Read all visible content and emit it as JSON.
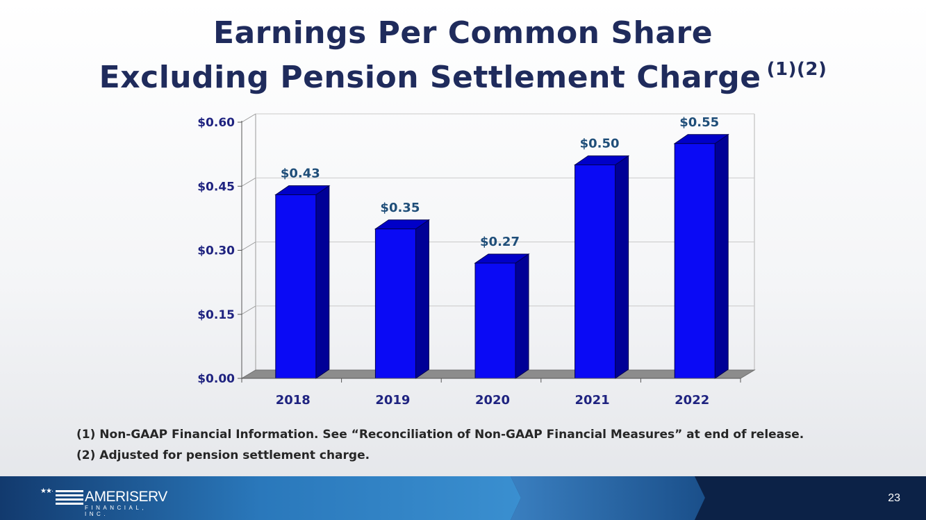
{
  "slide": {
    "title_line1": "Earnings Per Common Share",
    "title_line2": "Excluding Pension Settlement Charge",
    "title_superscript": "(1)(2)",
    "notes": [
      "(1) Non-GAAP Financial Information. See “Reconciliation of Non-GAAP Financial Measures” at end of release.",
      "(2) Adjusted for pension settlement charge."
    ],
    "page_number": "23"
  },
  "logo": {
    "name": "AMERISERV",
    "subtitle": "FINANCIAL, INC."
  },
  "colors": {
    "title": "#1f2b5c",
    "bar_front": "#0a0af5",
    "bar_side": "#000096",
    "bar_top": "#0000c8",
    "axis_label": "#1f2380",
    "data_label": "#1f4e79",
    "footer_dark": "#0f2a55",
    "footer_light": "#2e86c9"
  },
  "chart_data": {
    "type": "bar",
    "title": "Earnings Per Common Share Excluding Pension Settlement Charge",
    "categories": [
      "2018",
      "2019",
      "2020",
      "2021",
      "2022"
    ],
    "values": [
      0.43,
      0.35,
      0.27,
      0.5,
      0.55
    ],
    "data_labels": [
      "$0.43",
      "$0.35",
      "$0.27",
      "$0.50",
      "$0.55"
    ],
    "y_ticks": [
      0,
      0.15,
      0.3,
      0.45,
      0.6
    ],
    "y_tick_labels": [
      "$0.00",
      "$0.15",
      "$0.30",
      "$0.45",
      "$0.60"
    ],
    "ylim": [
      0,
      0.6
    ],
    "xlabel": "",
    "ylabel": "",
    "grid": true,
    "style": "3d-column"
  }
}
